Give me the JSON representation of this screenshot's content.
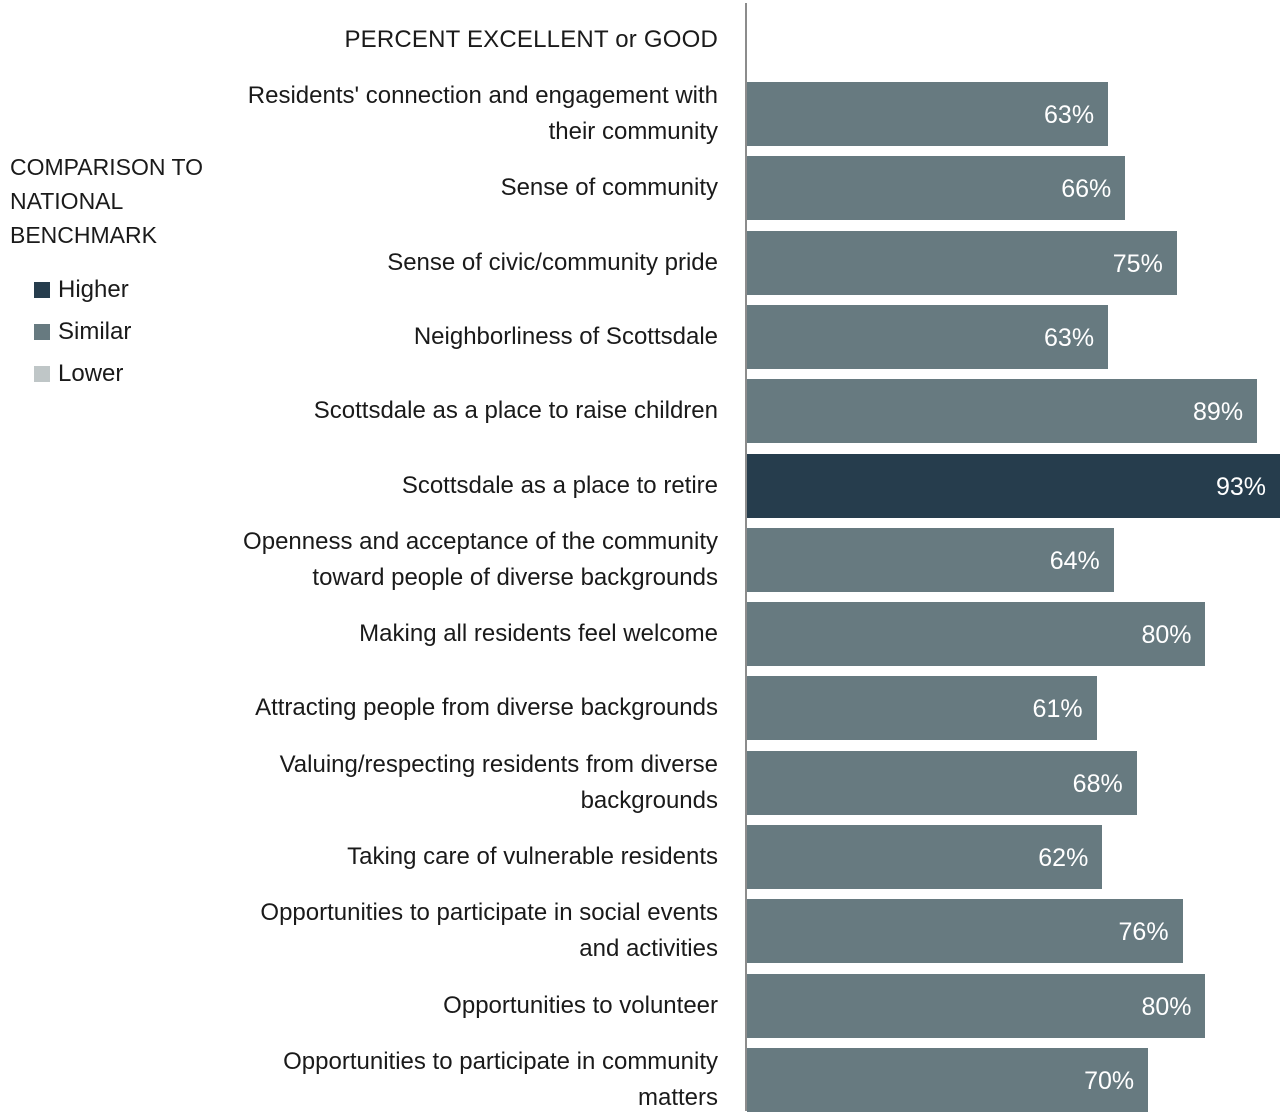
{
  "chart_data": {
    "type": "bar",
    "orientation": "horizontal",
    "title": "PERCENT EXCELLENT or GOOD",
    "categories": [
      "Residents' connection and engagement with their community",
      "Sense of community",
      "Sense of civic/community pride",
      "Neighborliness of Scottsdale",
      "Scottsdale as a place to raise children",
      "Scottsdale as a place to retire",
      "Openness and acceptance of the community toward people of diverse backgrounds",
      "Making all residents feel welcome",
      "Attracting people from diverse backgrounds",
      "Valuing/respecting residents from diverse backgrounds",
      "Taking care of vulnerable residents",
      "Opportunities to participate in social events and activities",
      "Opportunities to volunteer",
      "Opportunities to participate in community matters"
    ],
    "category_lines": [
      [
        "Residents' connection and engagement with",
        "their community"
      ],
      [
        "Sense of community"
      ],
      [
        "Sense of civic/community pride"
      ],
      [
        "Neighborliness of Scottsdale"
      ],
      [
        "Scottsdale as a place to raise children"
      ],
      [
        "Scottsdale as a place to retire"
      ],
      [
        "Openness and acceptance of the community",
        "toward people of diverse backgrounds"
      ],
      [
        "Making all residents feel welcome"
      ],
      [
        "Attracting people from diverse backgrounds"
      ],
      [
        "Valuing/respecting residents from diverse",
        "backgrounds"
      ],
      [
        "Taking care of vulnerable residents"
      ],
      [
        "Opportunities to participate in social events",
        "and activities"
      ],
      [
        "Opportunities to volunteer"
      ],
      [
        "Opportunities to participate in community",
        "matters"
      ]
    ],
    "values": [
      63,
      66,
      75,
      63,
      89,
      93,
      64,
      80,
      61,
      68,
      62,
      76,
      80,
      70
    ],
    "value_labels": [
      "63%",
      "66%",
      "75%",
      "63%",
      "89%",
      "93%",
      "64%",
      "80%",
      "61%",
      "68%",
      "62%",
      "76%",
      "80%",
      "70%"
    ],
    "comparison": [
      "Similar",
      "Similar",
      "Similar",
      "Similar",
      "Similar",
      "Higher",
      "Similar",
      "Similar",
      "Similar",
      "Similar",
      "Similar",
      "Similar",
      "Similar",
      "Similar"
    ],
    "xlim": [
      0,
      93
    ],
    "grid": false,
    "legend": {
      "title_lines": [
        "COMPARISON TO",
        "NATIONAL",
        "BENCHMARK"
      ],
      "position": "left",
      "items": [
        {
          "label": "Higher",
          "color": "#263d4d"
        },
        {
          "label": "Similar",
          "color": "#677a80"
        },
        {
          "label": "Lower",
          "color": "#bfc6c7"
        }
      ]
    }
  }
}
